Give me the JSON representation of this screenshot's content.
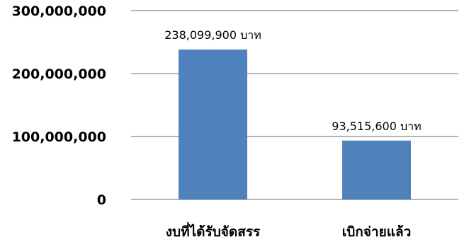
{
  "chart_data": {
    "type": "bar",
    "title": "",
    "xlabel": "",
    "ylabel": "",
    "categories": [
      "งบที่ได้รับจัดสรร",
      "เบิกจ่ายแล้ว"
    ],
    "values": [
      238099900,
      93515600
    ],
    "data_labels": [
      "238,099,900 บาท",
      "93,515,600 บาท"
    ],
    "ylim": [
      0,
      300000000
    ],
    "yticks": [
      0,
      100000000,
      200000000,
      300000000
    ],
    "ytick_labels": [
      "0",
      "100,000,000",
      "200,000,000",
      "300,000,000"
    ],
    "grid": true,
    "legend": "none",
    "bar_color": "#4F81BD",
    "grid_color": "#868686"
  }
}
